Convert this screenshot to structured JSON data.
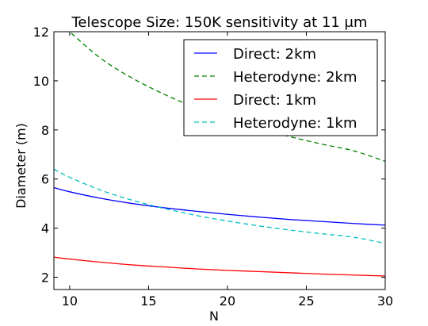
{
  "chart_data": {
    "type": "line",
    "title": "Telescope Size: 150K sensitivity at 11 μm",
    "xlabel": "N",
    "ylabel": "Diameter (m)",
    "xlim": [
      9,
      30
    ],
    "ylim": [
      1.5,
      12
    ],
    "xticks": [
      10,
      15,
      20,
      25,
      30
    ],
    "yticks": [
      2,
      4,
      6,
      8,
      10,
      12
    ],
    "legend_position": "top-right",
    "grid": false,
    "x": [
      9,
      10,
      12,
      14,
      16,
      18,
      20,
      22,
      24,
      26,
      28,
      30
    ],
    "series": [
      {
        "name": "Direct: 2km",
        "color": "#0000ff",
        "dash": "solid",
        "values": [
          5.65,
          5.48,
          5.21,
          5.0,
          4.83,
          4.69,
          4.56,
          4.45,
          4.35,
          4.27,
          4.19,
          4.12
        ]
      },
      {
        "name": "Heterodyne: 2km",
        "color": "#008000",
        "dash": "dashed",
        "values": [
          12.6,
          12.0,
          10.9,
          10.1,
          9.45,
          8.91,
          8.45,
          8.06,
          7.72,
          7.42,
          7.15,
          6.72
        ]
      },
      {
        "name": "Direct: 1km",
        "color": "#ff0000",
        "dash": "solid",
        "values": [
          2.82,
          2.74,
          2.61,
          2.5,
          2.42,
          2.34,
          2.28,
          2.23,
          2.18,
          2.13,
          2.09,
          2.05
        ]
      },
      {
        "name": "Heterodyne: 1km",
        "color": "#00bfbf",
        "dash": "dashed",
        "values": [
          6.4,
          6.07,
          5.54,
          5.13,
          4.8,
          4.52,
          4.29,
          4.09,
          3.92,
          3.77,
          3.63,
          3.38
        ]
      }
    ]
  }
}
